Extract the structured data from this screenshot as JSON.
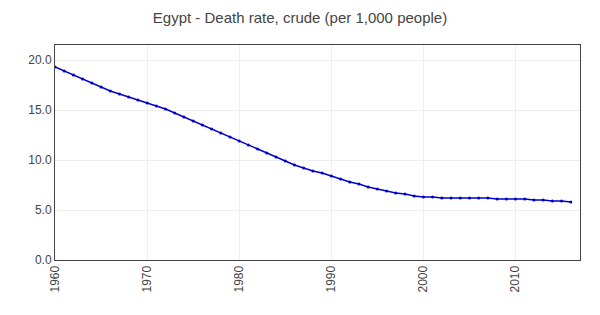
{
  "chart_data": {
    "type": "line",
    "title": "Egypt - Death rate, crude (per 1,000 people)",
    "x": [
      1960,
      1961,
      1962,
      1963,
      1964,
      1965,
      1966,
      1967,
      1968,
      1969,
      1970,
      1971,
      1972,
      1973,
      1974,
      1975,
      1976,
      1977,
      1978,
      1979,
      1980,
      1981,
      1982,
      1983,
      1984,
      1985,
      1986,
      1987,
      1988,
      1989,
      1990,
      1991,
      1992,
      1993,
      1994,
      1995,
      1996,
      1997,
      1998,
      1999,
      2000,
      2001,
      2002,
      2003,
      2004,
      2005,
      2006,
      2007,
      2008,
      2009,
      2010,
      2011,
      2012,
      2013,
      2014,
      2015,
      2016
    ],
    "values": [
      19.3,
      18.9,
      18.5,
      18.1,
      17.7,
      17.3,
      16.9,
      16.6,
      16.3,
      16.0,
      15.7,
      15.4,
      15.1,
      14.7,
      14.3,
      13.9,
      13.5,
      13.1,
      12.7,
      12.3,
      11.9,
      11.5,
      11.1,
      10.7,
      10.3,
      9.9,
      9.5,
      9.2,
      8.9,
      8.7,
      8.4,
      8.1,
      7.8,
      7.6,
      7.3,
      7.1,
      6.9,
      6.7,
      6.6,
      6.4,
      6.3,
      6.3,
      6.2,
      6.2,
      6.2,
      6.2,
      6.2,
      6.2,
      6.1,
      6.1,
      6.1,
      6.1,
      6.0,
      6.0,
      5.9,
      5.9,
      5.8
    ],
    "color": "#0000cc",
    "marker": "point",
    "xlim": [
      1960,
      2017
    ],
    "xticks": [
      1960,
      1970,
      1980,
      1990,
      2000,
      2010
    ],
    "ylim": [
      0.0,
      21.5
    ],
    "yticks": [
      {
        "value": 0,
        "label": "0.0"
      },
      {
        "value": 5,
        "label": "5.0"
      },
      {
        "value": 10,
        "label": "10.0"
      },
      {
        "value": 15,
        "label": "15.0"
      },
      {
        "value": 20,
        "label": "20.0"
      }
    ],
    "grid": true
  }
}
